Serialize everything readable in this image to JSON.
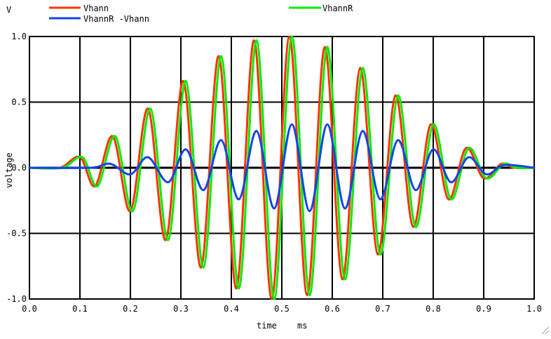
{
  "chart_data": {
    "type": "line",
    "y_unit_label": "V",
    "ylabel": "voltage",
    "xlabel_parts": [
      "time",
      "ms"
    ],
    "xlim": [
      0.0,
      1.0
    ],
    "ylim": [
      -1.0,
      1.0
    ],
    "x_ticks": [
      "0.0",
      "0.1",
      "0.2",
      "0.3",
      "0.4",
      "0.5",
      "0.6",
      "0.7",
      "0.8",
      "0.9",
      "1.0"
    ],
    "y_ticks": [
      "1.0",
      "0.5",
      "0.0",
      "-0.5",
      "-1.0"
    ],
    "grid": true,
    "legend_placement": "top",
    "series": [
      {
        "name": "Vhann",
        "color": "#ff3300",
        "x": [
          0.0,
          0.06,
          0.1,
          0.13,
          0.165,
          0.2,
          0.235,
          0.27,
          0.305,
          0.34,
          0.375,
          0.41,
          0.445,
          0.48,
          0.515,
          0.55,
          0.585,
          0.62,
          0.655,
          0.69,
          0.725,
          0.76,
          0.795,
          0.83,
          0.865,
          0.9,
          0.935,
          0.96,
          1.0
        ],
        "y": [
          0.0,
          0.0,
          0.08,
          -0.14,
          0.24,
          -0.33,
          0.45,
          -0.55,
          0.66,
          -0.76,
          0.85,
          -0.92,
          0.97,
          -1.0,
          1.0,
          -0.97,
          0.92,
          -0.85,
          0.76,
          -0.66,
          0.55,
          -0.45,
          0.33,
          -0.24,
          0.15,
          -0.08,
          0.03,
          0.0,
          0.0
        ]
      },
      {
        "name": "VhannR",
        "color": "#00ee00",
        "x": [
          0.0,
          0.065,
          0.105,
          0.135,
          0.17,
          0.205,
          0.24,
          0.275,
          0.31,
          0.345,
          0.38,
          0.415,
          0.45,
          0.485,
          0.52,
          0.555,
          0.59,
          0.625,
          0.66,
          0.695,
          0.73,
          0.765,
          0.8,
          0.835,
          0.87,
          0.905,
          0.94,
          0.965,
          1.0
        ],
        "y": [
          0.0,
          0.0,
          0.08,
          -0.14,
          0.24,
          -0.33,
          0.45,
          -0.55,
          0.66,
          -0.76,
          0.85,
          -0.92,
          0.97,
          -1.0,
          1.0,
          -0.97,
          0.92,
          -0.85,
          0.76,
          -0.66,
          0.55,
          -0.45,
          0.33,
          -0.24,
          0.15,
          -0.08,
          0.03,
          0.0,
          0.0
        ]
      },
      {
        "name": "VhannR -Vhann",
        "color": "#1144ee",
        "x": [
          0.0,
          0.12,
          0.16,
          0.2,
          0.235,
          0.275,
          0.31,
          0.345,
          0.38,
          0.415,
          0.45,
          0.485,
          0.52,
          0.555,
          0.59,
          0.625,
          0.66,
          0.695,
          0.73,
          0.765,
          0.8,
          0.835,
          0.87,
          0.905,
          0.94,
          1.0
        ],
        "y": [
          0.0,
          0.0,
          0.03,
          -0.05,
          0.08,
          -0.11,
          0.14,
          -0.17,
          0.21,
          -0.24,
          0.28,
          -0.31,
          0.33,
          -0.33,
          0.33,
          -0.31,
          0.28,
          -0.24,
          0.21,
          -0.17,
          0.14,
          -0.11,
          0.08,
          -0.05,
          0.02,
          0.0
        ]
      }
    ]
  }
}
